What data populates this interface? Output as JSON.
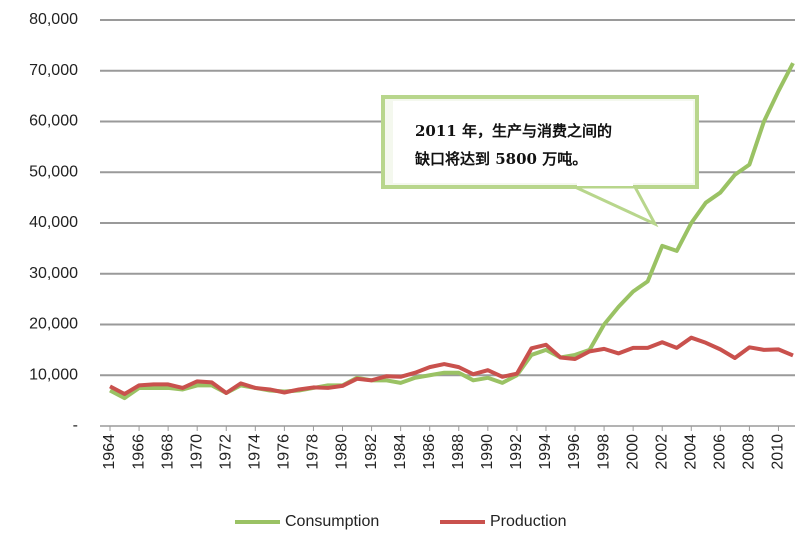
{
  "chart_data": {
    "type": "line",
    "x": [
      1964,
      1965,
      1966,
      1967,
      1968,
      1969,
      1970,
      1971,
      1972,
      1973,
      1974,
      1975,
      1976,
      1977,
      1978,
      1979,
      1980,
      1981,
      1982,
      1983,
      1984,
      1985,
      1986,
      1987,
      1988,
      1989,
      1990,
      1991,
      1992,
      1993,
      1994,
      1995,
      1996,
      1997,
      1998,
      1999,
      2000,
      2001,
      2002,
      2003,
      2004,
      2005,
      2006,
      2007,
      2008,
      2009,
      2010,
      2011
    ],
    "series": [
      {
        "name": "Consumption",
        "color": "#9ac264",
        "values": [
          7000,
          5500,
          7500,
          7500,
          7500,
          7200,
          8000,
          8000,
          6500,
          8000,
          7500,
          7000,
          6800,
          7000,
          7500,
          8000,
          8000,
          9500,
          9000,
          9000,
          8500,
          9500,
          10000,
          10500,
          10500,
          9000,
          9500,
          8500,
          10000,
          14000,
          15000,
          13500,
          14000,
          15000,
          20000,
          23500,
          26500,
          28500,
          35500,
          34500,
          40000,
          44000,
          46000,
          49500,
          51500,
          60000,
          66000,
          71500
        ]
      },
      {
        "name": "Production",
        "color": "#c9514d",
        "values": [
          7800,
          6300,
          8000,
          8200,
          8200,
          7500,
          8800,
          8600,
          6500,
          8400,
          7500,
          7200,
          6600,
          7200,
          7600,
          7500,
          7900,
          9300,
          9000,
          9800,
          9700,
          10500,
          11600,
          12200,
          11600,
          10200,
          11000,
          9700,
          10300,
          15300,
          16000,
          13500,
          13200,
          14700,
          15200,
          14300,
          15400,
          15400,
          16500,
          15400,
          17400,
          16400,
          15100,
          13400,
          15500,
          15000,
          15100,
          13900
        ]
      }
    ],
    "xlim": [
      1964,
      2011
    ],
    "xticks": [
      1964,
      1966,
      1968,
      1970,
      1972,
      1974,
      1976,
      1978,
      1980,
      1982,
      1984,
      1986,
      1988,
      1990,
      1992,
      1994,
      1996,
      1998,
      2000,
      2002,
      2004,
      2006,
      2008,
      2010
    ],
    "ylim": [
      0,
      80000
    ],
    "yticks": [
      {
        "value": 0,
        "label": "-"
      },
      {
        "value": 10000,
        "label": "10,000"
      },
      {
        "value": 20000,
        "label": "20,000"
      },
      {
        "value": 30000,
        "label": "30,000"
      },
      {
        "value": 40000,
        "label": "40,000"
      },
      {
        "value": 50000,
        "label": "50,000"
      },
      {
        "value": 60000,
        "label": "60,000"
      },
      {
        "value": 70000,
        "label": "70,000"
      },
      {
        "value": 80000,
        "label": "80,000"
      }
    ],
    "grid": true,
    "legend": "bottom",
    "annotation": [
      "2011 年，生产与消费之间的",
      "缺口将达到 5800 万吨。"
    ]
  }
}
